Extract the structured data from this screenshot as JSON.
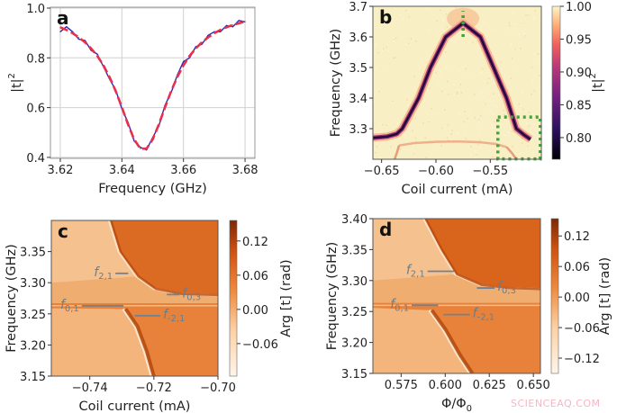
{
  "watermark": "SCIENCEAQ.COM",
  "chart_data": [
    {
      "panel": "a",
      "type": "line",
      "xlabel": "Frequency (GHz)",
      "ylabel": "|t|",
      "ylabel_sup": "2",
      "xlim": [
        3.6168,
        3.6832
      ],
      "ylim": [
        0.396,
        1.0036
      ],
      "xticks": [
        "3.62",
        "3.64",
        "3.66",
        "3.68"
      ],
      "yticks": [
        "0.4",
        "0.6",
        "0.8",
        "1.0"
      ],
      "grid": true,
      "x": [
        3.62,
        3.622,
        3.624,
        3.626,
        3.628,
        3.63,
        3.632,
        3.634,
        3.636,
        3.638,
        3.64,
        3.642,
        3.644,
        3.646,
        3.648,
        3.65,
        3.652,
        3.654,
        3.656,
        3.658,
        3.66,
        3.662,
        3.664,
        3.666,
        3.668,
        3.67,
        3.672,
        3.674,
        3.676,
        3.678,
        3.68
      ],
      "series": [
        {
          "role": "measured",
          "color": "#2a2ab8",
          "values": [
            0.905,
            0.925,
            0.905,
            0.875,
            0.87,
            0.83,
            0.815,
            0.765,
            0.715,
            0.67,
            0.595,
            0.54,
            0.465,
            0.44,
            0.43,
            0.48,
            0.525,
            0.61,
            0.66,
            0.73,
            0.785,
            0.8,
            0.845,
            0.855,
            0.89,
            0.905,
            0.905,
            0.93,
            0.925,
            0.95,
            0.945
          ]
        },
        {
          "role": "fit",
          "color": "#e8304a",
          "style": "dashed",
          "values": [
            0.923,
            0.912,
            0.899,
            0.882,
            0.863,
            0.838,
            0.808,
            0.77,
            0.723,
            0.666,
            0.601,
            0.532,
            0.472,
            0.435,
            0.435,
            0.472,
            0.532,
            0.601,
            0.666,
            0.723,
            0.77,
            0.808,
            0.838,
            0.863,
            0.882,
            0.899,
            0.912,
            0.923,
            0.932,
            0.939,
            0.946
          ]
        }
      ]
    },
    {
      "panel": "b",
      "type": "heatmap",
      "xlabel": "Coil current (mA)",
      "ylabel": "Frequency (GHz)",
      "xlim": [
        -0.658,
        -0.503
      ],
      "ylim": [
        3.2,
        3.7
      ],
      "xtick_values": [
        -0.65,
        -0.6,
        -0.55
      ],
      "xticks": [
        "−0.65",
        "−0.60",
        "−0.55"
      ],
      "ytick_values": [
        3.3,
        3.4,
        3.5,
        3.6,
        3.7
      ],
      "yticks": [
        "3.3",
        "3.4",
        "3.5",
        "3.6",
        "3.7"
      ],
      "colormap": "magma",
      "colorbar": {
        "label": "|t|",
        "label_sup": "2",
        "range": [
          0.767,
          1.0
        ],
        "tick_values": [
          0.8,
          0.85,
          0.9,
          0.95,
          1.0
        ],
        "ticks": [
          "0.80",
          "0.85",
          "0.90",
          "0.95",
          "1.00"
        ]
      },
      "resonance": {
        "x": [
          -0.658,
          -0.645,
          -0.636,
          -0.631,
          -0.616,
          -0.605,
          -0.591,
          -0.575,
          -0.559,
          -0.547,
          -0.535,
          -0.526,
          -0.519,
          -0.513
        ],
        "y": [
          3.27,
          3.274,
          3.283,
          3.3,
          3.4,
          3.5,
          3.6,
          3.645,
          3.6,
          3.5,
          3.4,
          3.3,
          3.28,
          3.265
        ]
      },
      "lower_arc": {
        "x": [
          -0.634,
          -0.62,
          -0.6,
          -0.58,
          -0.56,
          -0.545,
          -0.535
        ],
        "y": [
          3.245,
          3.253,
          3.257,
          3.258,
          3.256,
          3.25,
          3.24
        ]
      },
      "lower_branches": [
        {
          "x": [
            -0.634,
            -0.636,
            -0.638
          ],
          "y": [
            3.245,
            3.22,
            3.2
          ]
        },
        {
          "x": [
            -0.535,
            -0.53,
            -0.526
          ],
          "y": [
            3.24,
            3.22,
            3.2
          ]
        }
      ],
      "markers": {
        "color": "#3ea63e",
        "vline": {
          "x": -0.575,
          "y": [
            3.6,
            3.685
          ]
        },
        "box": {
          "x": [
            -0.543,
            -0.504
          ],
          "y": [
            3.201,
            3.338
          ]
        }
      }
    },
    {
      "panel": "c",
      "type": "heatmap",
      "xlabel": "Coil current (mA)",
      "ylabel": "Frequency (GHz)",
      "xlim": [
        -0.752,
        -0.7
      ],
      "ylim": [
        3.15,
        3.4
      ],
      "xtick_values": [
        -0.74,
        -0.72,
        -0.7
      ],
      "xticks": [
        "−0.74",
        "−0.72",
        "−0.70"
      ],
      "ytick_values": [
        3.15,
        3.2,
        3.25,
        3.3,
        3.35
      ],
      "yticks": [
        "3.15",
        "3.20",
        "3.25",
        "3.30",
        "3.35"
      ],
      "colormap": "oranges",
      "colorbar": {
        "label": "Arg [t]  (rad)",
        "range": [
          -0.117,
          0.156
        ],
        "tick_values": [
          -0.06,
          0.0,
          0.06,
          0.12
        ],
        "ticks": [
          "−0.06",
          "0.00",
          "0.06",
          "0.12"
        ]
      },
      "gap_line": 3.263,
      "upper_branch": {
        "x": [
          -0.734,
          -0.731,
          -0.7254,
          -0.72,
          -0.712,
          -0.7
        ],
        "y": [
          3.4,
          3.35,
          3.31,
          3.29,
          3.282,
          3.28
        ]
      },
      "lower_branch": {
        "x": [
          -0.7296,
          -0.7259,
          -0.723,
          -0.7208
        ],
        "y": [
          3.258,
          3.23,
          3.19,
          3.15
        ]
      },
      "labels": [
        {
          "name": "f",
          "sub": "2,1",
          "x": [
            -0.732,
            -0.728
          ],
          "y": 3.315,
          "side": "left"
        },
        {
          "name": "f",
          "sub": "0,3",
          "x": [
            -0.716,
            -0.712
          ],
          "y": 3.281,
          "side": "right"
        },
        {
          "name": "f",
          "sub": "0,1",
          "x": [
            -0.7425,
            -0.7295
          ],
          "y": 3.263,
          "side": "left"
        },
        {
          "name": "f",
          "sub": "-2,1",
          "x": [
            -0.726,
            -0.718
          ],
          "y": 3.247,
          "side": "right"
        }
      ]
    },
    {
      "panel": "d",
      "type": "heatmap",
      "xlabel": "Φ/Φ",
      "xlabel_sub": "0",
      "ylabel": "Frequency (GHz)",
      "xlim": [
        0.559,
        0.654
      ],
      "ylim": [
        3.15,
        3.4
      ],
      "xtick_values": [
        0.575,
        0.6,
        0.625,
        0.65
      ],
      "xticks": [
        "0.575",
        "0.600",
        "0.625",
        "0.650"
      ],
      "ytick_values": [
        3.15,
        3.2,
        3.25,
        3.3,
        3.35,
        3.4
      ],
      "yticks": [
        "3.15",
        "3.20",
        "3.25",
        "3.30",
        "3.35",
        "3.40"
      ],
      "colormap": "oranges",
      "colorbar": {
        "label": "Arg [t]  (rad)",
        "range": [
          -0.15,
          0.154
        ],
        "tick_values": [
          -0.12,
          -0.06,
          0.0,
          0.06,
          0.12
        ],
        "ticks": [
          "−0.12",
          "−0.06",
          "0.00",
          "0.06",
          "0.12"
        ]
      },
      "gap_line": 3.26,
      "upper_branch": {
        "x": [
          0.5878,
          0.597,
          0.6056,
          0.6194,
          0.635,
          0.654
        ],
        "y": [
          3.4,
          3.35,
          3.31,
          3.293,
          3.288,
          3.286
        ]
      },
      "lower_branch": {
        "x": [
          0.591,
          0.599,
          0.607,
          0.614
        ],
        "y": [
          3.252,
          3.22,
          3.18,
          3.15
        ]
      },
      "labels": [
        {
          "name": "f",
          "sub": "2,1",
          "x": [
            0.59,
            0.605
          ],
          "y": 3.315,
          "side": "left"
        },
        {
          "name": "f",
          "sub": "0,3",
          "x": [
            0.618,
            0.628
          ],
          "y": 3.288,
          "side": "right"
        },
        {
          "name": "f",
          "sub": "0,1",
          "x": [
            0.581,
            0.596
          ],
          "y": 3.26,
          "side": "left"
        },
        {
          "name": "f",
          "sub": "-2,1",
          "x": [
            0.599,
            0.614
          ],
          "y": 3.245,
          "side": "right"
        }
      ]
    }
  ]
}
